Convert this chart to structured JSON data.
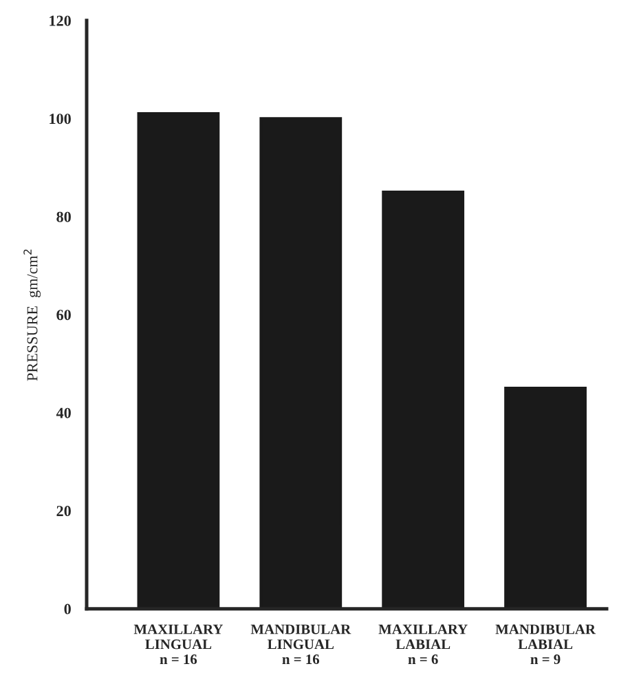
{
  "chart_data": {
    "type": "bar",
    "ylabel": "PRESSURE  gm/cm$^{2}$",
    "categories": [
      "MAXILLARY\nLINGUAL\nn = 16",
      "MANDIBULAR\nLINGUAL\nn = 16",
      "MAXILLARY\nLABIAL\nn = 6",
      "MANDIBULAR\nLABIAL\nn = 9"
    ],
    "values": [
      101,
      100,
      85,
      45
    ],
    "color": "#1a1a1a",
    "ylim": [
      0,
      120
    ],
    "yticks": [
      0,
      20,
      40,
      60,
      80,
      100,
      120
    ],
    "grid": false,
    "legend": false
  }
}
